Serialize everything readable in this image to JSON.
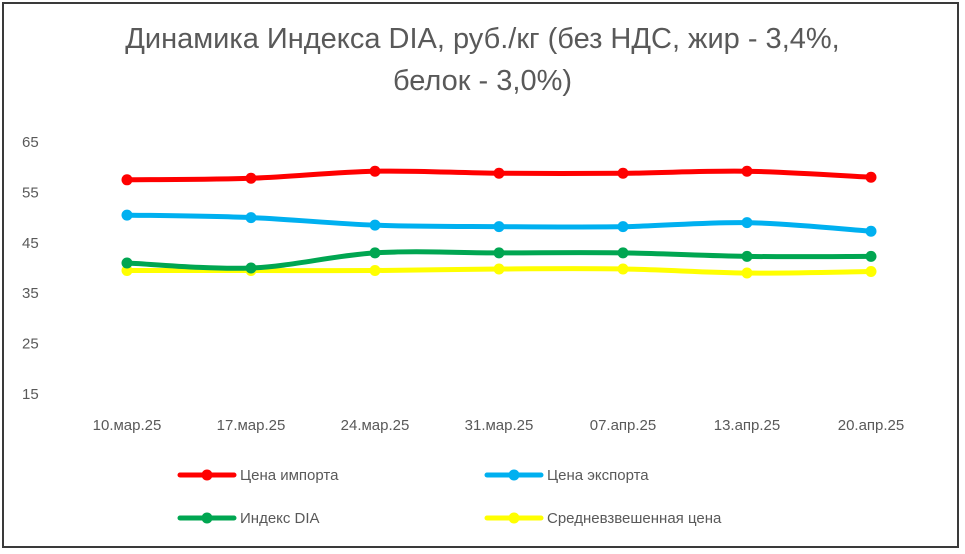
{
  "chart_data": {
    "type": "line",
    "title": "Динамика Индекса DIA, руб./кг (без НДС, жир - 3,4%, белок - 3,0%)",
    "categories": [
      "10.мар.25",
      "17.мар.25",
      "24.мар.25",
      "31.мар.25",
      "07.апр.25",
      "13.апр.25",
      "20.апр.25"
    ],
    "ylim": [
      15,
      65
    ],
    "yticks": [
      65,
      55,
      45,
      35,
      25,
      15
    ],
    "grid": false,
    "legend_position": "bottom",
    "series": [
      {
        "name": "Цена импорта",
        "color": "#FF0000",
        "values": [
          57.5,
          57.8,
          59.2,
          58.8,
          58.8,
          59.2,
          58.0
        ]
      },
      {
        "name": "Цена экспорта",
        "color": "#00B0F0",
        "values": [
          50.5,
          50.0,
          48.5,
          48.2,
          48.2,
          49.0,
          47.3
        ]
      },
      {
        "name": "Индекс DIA",
        "color": "#00A651",
        "values": [
          41.0,
          40.0,
          43.0,
          43.0,
          43.0,
          42.3,
          42.3
        ]
      },
      {
        "name": "Средневзвешенная цена",
        "color": "#FFFF00",
        "values": [
          39.5,
          39.5,
          39.5,
          39.8,
          39.8,
          39.0,
          39.3
        ]
      }
    ]
  }
}
